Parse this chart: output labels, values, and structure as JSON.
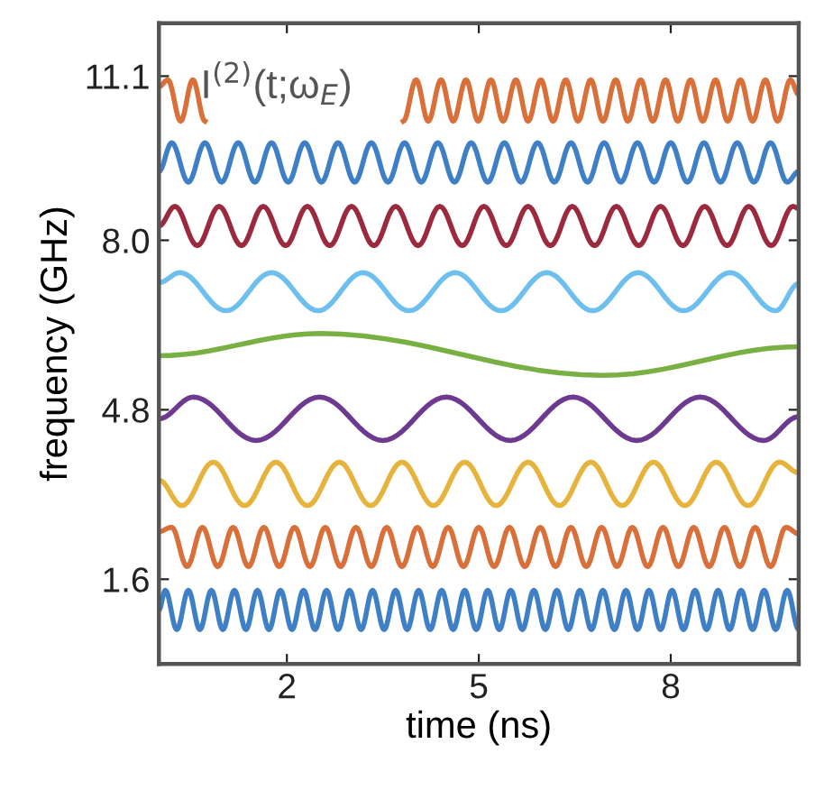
{
  "chart_data": {
    "type": "line",
    "xlabel": "time (ns)",
    "ylabel": "frequency (GHz)",
    "annotations": [
      "I$^{(2)}$(t;ω$_{E}$)"
    ],
    "xlim": [
      0,
      10
    ],
    "ylim": [
      0,
      12.1
    ],
    "xticks": [
      2,
      5,
      8
    ],
    "yticks": [
      1.6,
      4.8,
      {
        "value": 8.0,
        "label": "8.0"
      },
      11.1
    ],
    "grid": false,
    "legend": false,
    "marker": "none",
    "line_style": "solid",
    "series": [
      {
        "color": "#d9703a",
        "x": [
          0,
          0.14,
          0.34,
          0.53,
          0.72,
          2.2,
          3.82,
          4.02,
          4.21,
          4.41,
          4.6,
          4.8,
          4.99,
          5.19,
          5.38,
          5.58,
          5.77,
          5.97,
          6.16,
          6.36,
          6.55,
          6.75,
          6.94,
          7.14,
          7.33,
          7.53,
          7.72,
          7.92,
          8.11,
          8.31,
          8.5,
          8.7,
          8.89,
          9.09,
          9.28,
          9.48,
          9.67,
          9.87,
          10
        ],
        "values": [
          10.9,
          11.03,
          10.25,
          11.03,
          10.25,
          null,
          10.25,
          11.03,
          10.25,
          11.03,
          10.25,
          11.03,
          10.25,
          11.03,
          10.25,
          11.03,
          10.25,
          11.03,
          10.25,
          11.03,
          10.25,
          11.03,
          10.25,
          11.03,
          10.25,
          11.03,
          10.25,
          11.03,
          10.25,
          11.03,
          10.25,
          11.03,
          10.25,
          11.03,
          10.25,
          11.03,
          10.25,
          11.03,
          10.75
        ]
      },
      {
        "color": "#3f7fc6",
        "x": [
          0,
          0.2,
          0.46,
          0.72,
          0.98,
          1.24,
          1.5,
          1.76,
          2.02,
          2.28,
          2.54,
          2.8,
          3.06,
          3.32,
          3.58,
          3.84,
          4.1,
          4.36,
          4.62,
          4.88,
          5.14,
          5.4,
          5.66,
          5.92,
          6.18,
          6.44,
          6.7,
          6.96,
          7.22,
          7.48,
          7.74,
          8.0,
          8.26,
          8.52,
          8.78,
          9.04,
          9.3,
          9.56,
          9.82,
          10
        ],
        "values": [
          9.3,
          9.84,
          9.1,
          9.84,
          9.1,
          9.84,
          9.1,
          9.84,
          9.1,
          9.84,
          9.1,
          9.84,
          9.1,
          9.84,
          9.1,
          9.84,
          9.1,
          9.84,
          9.1,
          9.84,
          9.1,
          9.84,
          9.1,
          9.84,
          9.1,
          9.84,
          9.1,
          9.84,
          9.1,
          9.84,
          9.1,
          9.84,
          9.1,
          9.84,
          9.1,
          9.84,
          9.1,
          9.84,
          9.1,
          9.3
        ]
      },
      {
        "color": "#9b2a3f",
        "x": [
          0,
          0.25,
          0.6,
          0.94,
          1.29,
          1.63,
          1.98,
          2.32,
          2.67,
          3.01,
          3.36,
          3.7,
          4.05,
          4.39,
          4.74,
          5.08,
          5.43,
          5.77,
          6.12,
          6.46,
          6.81,
          7.15,
          7.5,
          7.84,
          8.19,
          8.53,
          8.88,
          9.22,
          9.57,
          9.91,
          10
        ],
        "values": [
          8.27,
          8.64,
          7.9,
          8.64,
          7.9,
          8.64,
          7.9,
          8.64,
          7.9,
          8.64,
          7.9,
          8.64,
          7.9,
          8.64,
          7.9,
          8.64,
          7.9,
          8.64,
          7.9,
          8.64,
          7.9,
          8.64,
          7.9,
          8.64,
          7.9,
          8.64,
          7.9,
          8.64,
          7.9,
          8.64,
          8.6
        ]
      },
      {
        "color": "#6dbfee",
        "x": [
          0,
          0.33,
          1.05,
          1.76,
          2.49,
          3.19,
          3.91,
          4.63,
          5.35,
          6.06,
          6.78,
          7.49,
          8.2,
          8.93,
          9.64,
          10
        ],
        "values": [
          7.2,
          7.39,
          6.67,
          7.39,
          6.67,
          7.39,
          6.67,
          7.39,
          6.67,
          7.39,
          6.67,
          7.39,
          6.67,
          7.39,
          6.67,
          7.18
        ]
      },
      {
        "color": "#79b043",
        "x": [
          0,
          2.52,
          6.94,
          10
        ],
        "values": [
          5.82,
          6.24,
          5.45,
          5.99
        ]
      },
      {
        "color": "#6d3a90",
        "x": [
          0,
          0.54,
          1.52,
          2.51,
          3.5,
          4.49,
          5.49,
          6.47,
          7.47,
          8.46,
          9.45,
          10
        ],
        "values": [
          4.63,
          5.04,
          4.22,
          5.04,
          4.22,
          5.04,
          4.22,
          5.04,
          4.22,
          5.04,
          4.22,
          4.67
        ]
      },
      {
        "color": "#e6b43c",
        "x": [
          0,
          0.36,
          0.85,
          1.34,
          1.83,
          2.32,
          2.82,
          3.31,
          3.8,
          4.29,
          4.78,
          5.27,
          5.77,
          6.26,
          6.75,
          7.24,
          7.73,
          8.22,
          8.71,
          9.21,
          9.7,
          10
        ],
        "values": [
          3.47,
          2.99,
          3.81,
          2.99,
          3.81,
          2.99,
          3.81,
          2.99,
          3.81,
          2.99,
          3.81,
          2.99,
          3.81,
          2.99,
          3.81,
          2.99,
          3.81,
          2.99,
          3.81,
          2.99,
          3.81,
          3.61
        ]
      },
      {
        "color": "#d9703a",
        "x": [
          0,
          0.2,
          0.44,
          0.68,
          0.92,
          1.16,
          1.4,
          1.64,
          1.88,
          2.12,
          2.36,
          2.6,
          2.84,
          3.08,
          3.32,
          3.56,
          3.8,
          4.04,
          4.28,
          4.52,
          4.76,
          5.0,
          5.24,
          5.48,
          5.72,
          5.96,
          6.2,
          6.44,
          6.68,
          6.92,
          7.16,
          7.4,
          7.64,
          7.88,
          8.12,
          8.36,
          8.6,
          8.84,
          9.08,
          9.32,
          9.56,
          9.8,
          10
        ],
        "values": [
          2.5,
          2.58,
          1.84,
          2.58,
          1.84,
          2.58,
          1.84,
          2.58,
          1.84,
          2.58,
          1.84,
          2.58,
          1.84,
          2.58,
          1.84,
          2.58,
          1.84,
          2.58,
          1.84,
          2.58,
          1.84,
          2.58,
          1.84,
          2.58,
          1.84,
          2.58,
          1.84,
          2.58,
          1.84,
          2.58,
          1.84,
          2.58,
          1.84,
          2.58,
          1.84,
          2.58,
          1.84,
          2.58,
          1.84,
          2.58,
          1.84,
          2.58,
          2.46
        ]
      },
      {
        "color": "#3f7fc6",
        "x": [
          0,
          0.1,
          0.28,
          0.46,
          0.64,
          0.82,
          1.0,
          1.18,
          1.36,
          1.54,
          1.72,
          1.9,
          2.08,
          2.26,
          2.44,
          2.62,
          2.8,
          2.98,
          3.16,
          3.34,
          3.52,
          3.7,
          3.88,
          4.06,
          4.24,
          4.42,
          4.6,
          4.78,
          4.96,
          5.14,
          5.32,
          5.5,
          5.68,
          5.86,
          6.04,
          6.22,
          6.4,
          6.58,
          6.76,
          6.94,
          7.12,
          7.3,
          7.48,
          7.66,
          7.84,
          8.02,
          8.2,
          8.38,
          8.56,
          8.74,
          8.92,
          9.1,
          9.28,
          9.46,
          9.64,
          9.82,
          10.0
        ],
        "values": [
          1.02,
          1.39,
          0.65,
          1.39,
          0.65,
          1.39,
          0.65,
          1.39,
          0.65,
          1.39,
          0.65,
          1.39,
          0.65,
          1.39,
          0.65,
          1.39,
          0.65,
          1.39,
          0.65,
          1.39,
          0.65,
          1.39,
          0.65,
          1.39,
          0.65,
          1.39,
          0.65,
          1.39,
          0.65,
          1.39,
          0.65,
          1.39,
          0.65,
          1.39,
          0.65,
          1.39,
          0.65,
          1.39,
          0.65,
          1.39,
          0.65,
          1.39,
          0.65,
          1.39,
          0.65,
          1.39,
          0.65,
          1.39,
          0.65,
          1.39,
          0.65,
          1.39,
          0.65,
          1.39,
          0.65,
          1.39,
          0.65
        ]
      }
    ]
  }
}
